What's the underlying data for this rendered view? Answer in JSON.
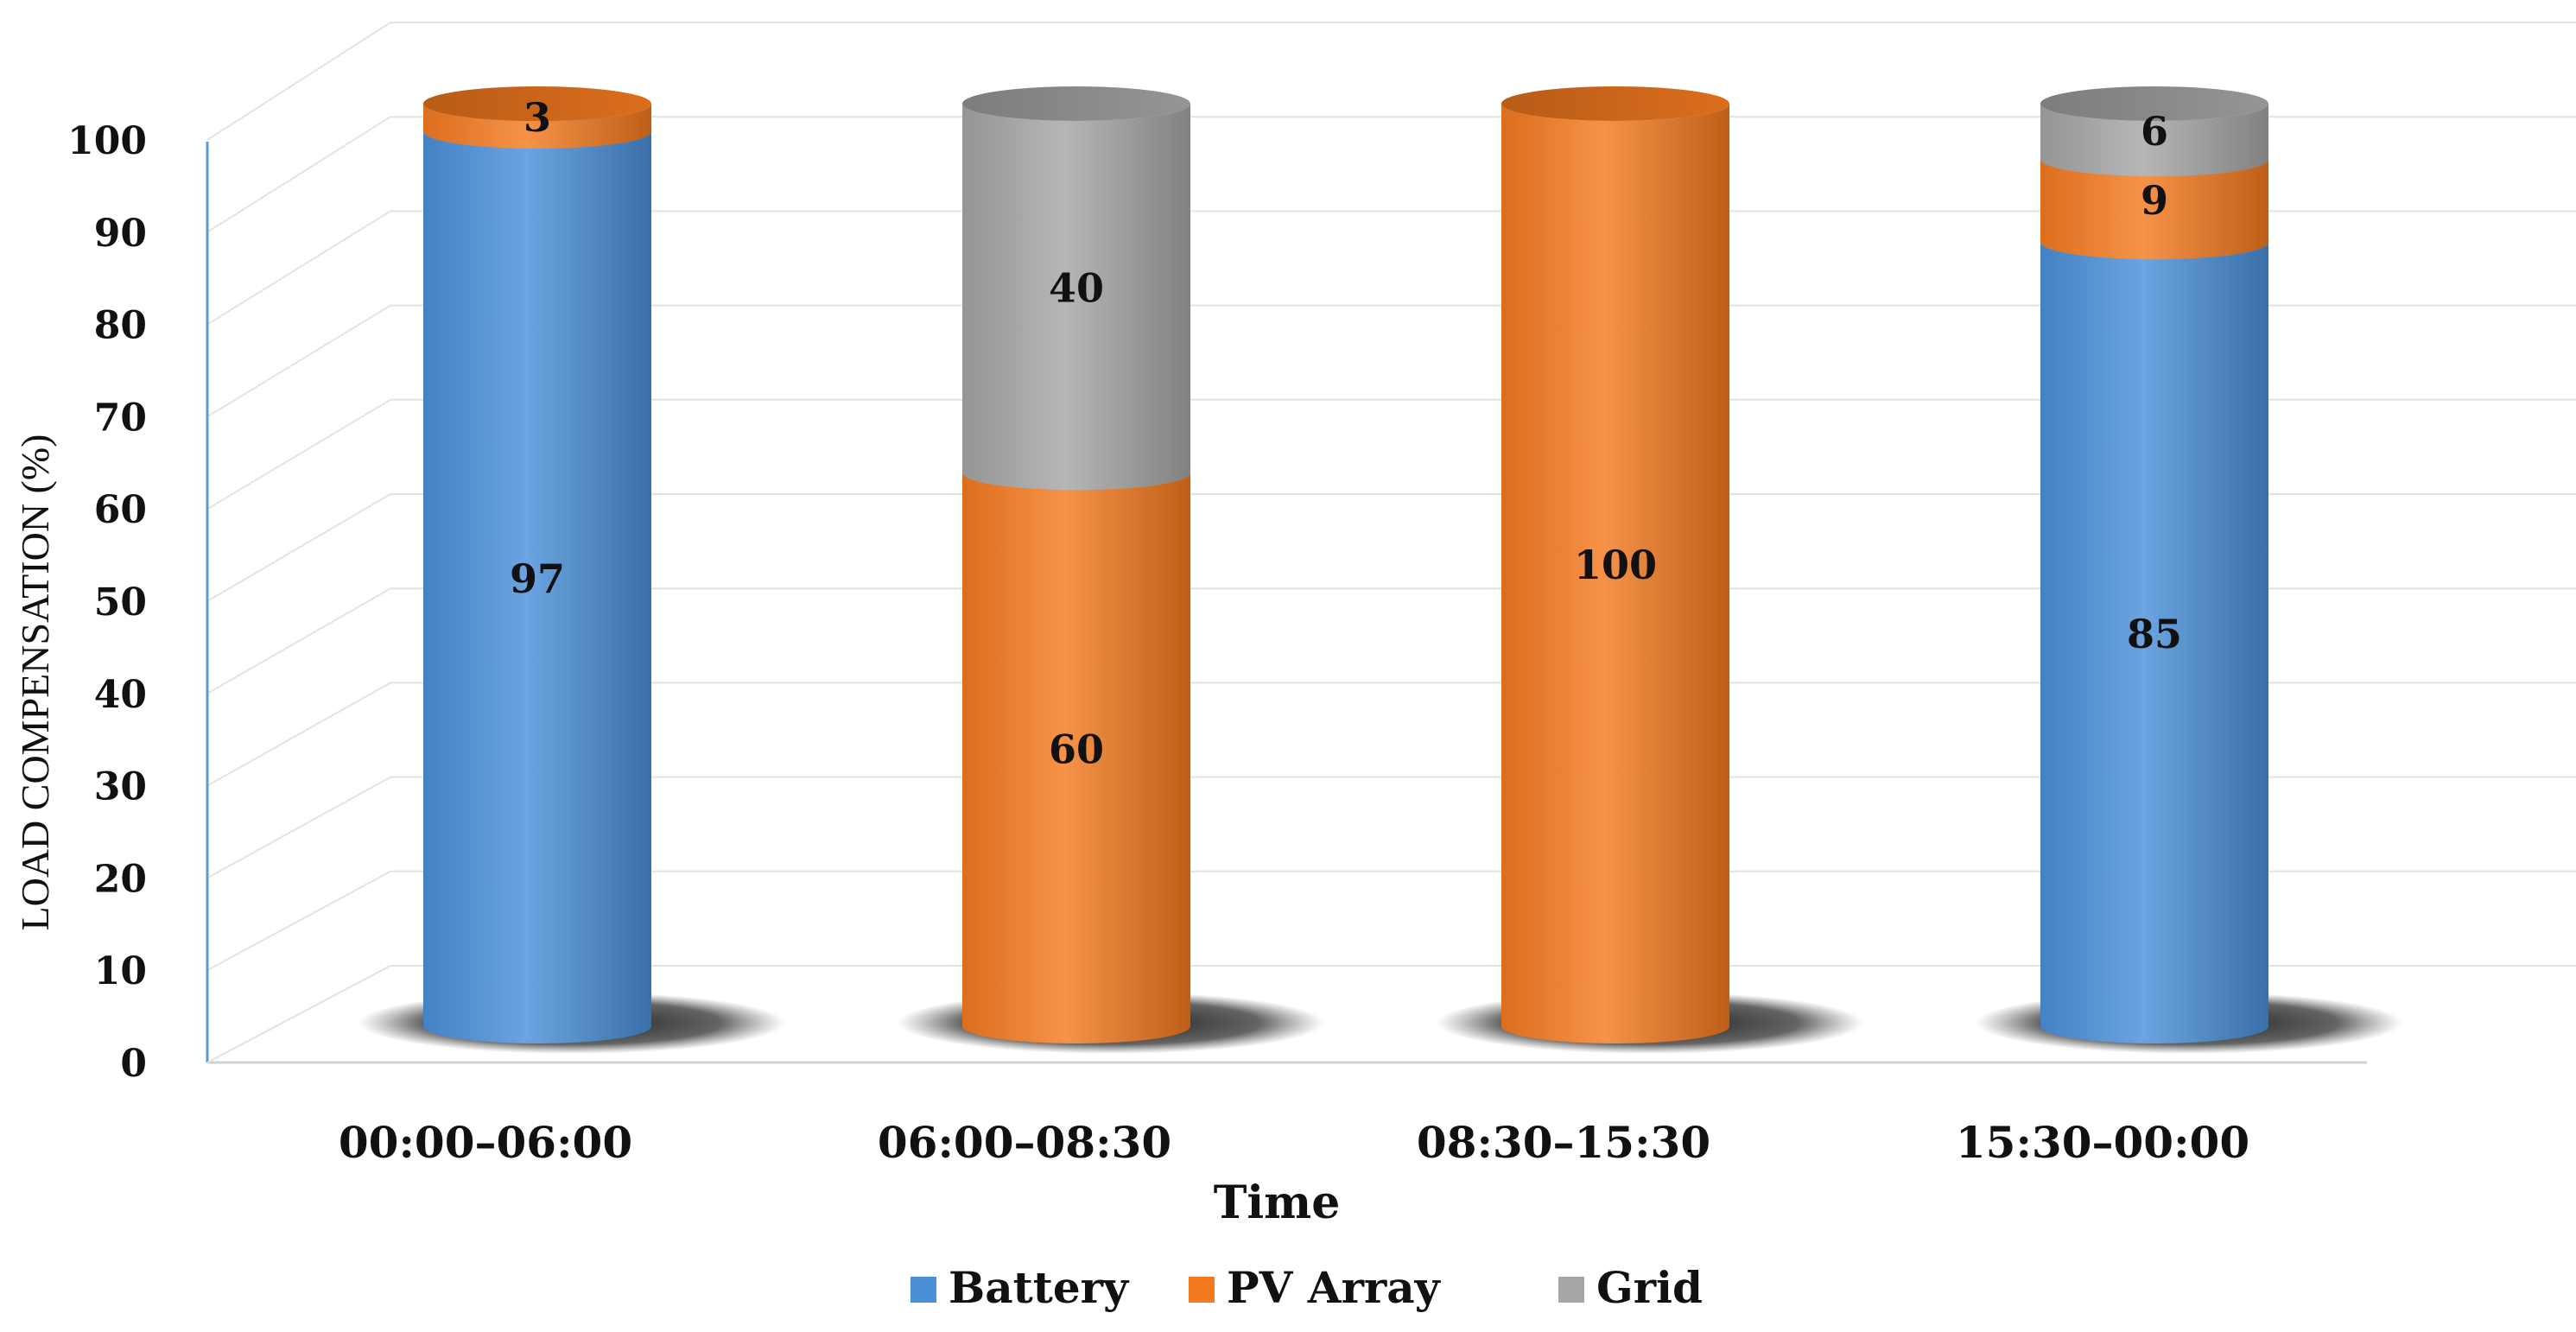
{
  "chart_data": {
    "type": "bar",
    "stacked": true,
    "style": "3d-cylinder",
    "categories": [
      "00:00–06:00",
      "06:00–08:30",
      "08:30–15:30",
      "15:30–00:00"
    ],
    "series": [
      {
        "name": "Battery",
        "values": [
          97,
          0,
          0,
          85
        ],
        "color": "#4A90D9"
      },
      {
        "name": "PV Array",
        "values": [
          3,
          60,
          100,
          9
        ],
        "color": "#F47A20"
      },
      {
        "name": "Grid",
        "values": [
          0,
          40,
          0,
          6
        ],
        "color": "#A6A6A6"
      }
    ],
    "data_labels": [
      [
        "97",
        "",
        "",
        "85"
      ],
      [
        "3",
        "60",
        "100",
        "9"
      ],
      [
        "",
        "40",
        "",
        "6"
      ]
    ],
    "xlabel": "Time",
    "ylabel": "LOAD COMPENSATION (%)",
    "ylim": [
      0,
      100
    ],
    "yticks": [
      0,
      10,
      20,
      30,
      40,
      50,
      60,
      70,
      80,
      90,
      100
    ],
    "grid": true,
    "legend_position": "bottom"
  }
}
